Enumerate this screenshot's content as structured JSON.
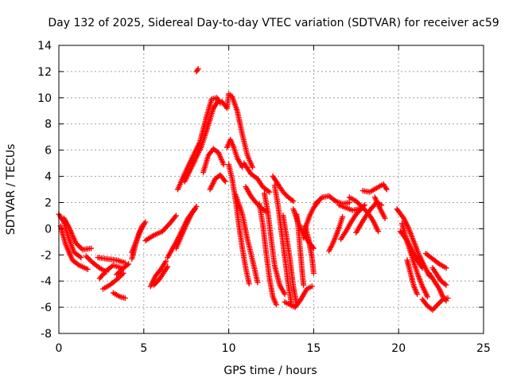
{
  "chart_data": {
    "type": "scatter",
    "title": "Day 132 of 2025, Sidereal Day-to-day VTEC variation (SDTVAR) for receiver ac59",
    "xlabel": "GPS time / hours",
    "ylabel": "SDTVAR / TECUs",
    "xlim": [
      0,
      25
    ],
    "ylim": [
      -8,
      14
    ],
    "xticks": [
      "0",
      "5",
      "10",
      "15",
      "20",
      "25"
    ],
    "yticks": [
      "-8",
      "-6",
      "-4",
      "-2",
      "0",
      "2",
      "4",
      "6",
      "8",
      "10",
      "12",
      "14"
    ],
    "grid": true,
    "marker": "plus",
    "series_color": "#ff0000",
    "tracks": [
      [
        [
          0.0,
          1.1
        ],
        [
          0.3,
          0.5
        ],
        [
          0.6,
          -0.8
        ],
        [
          0.9,
          -1.8
        ],
        [
          1.3,
          -2.2
        ]
      ],
      [
        [
          0.1,
          0.2
        ],
        [
          0.4,
          -1.2
        ],
        [
          0.8,
          -2.4
        ],
        [
          1.2,
          -2.8
        ],
        [
          1.7,
          -3.1
        ]
      ],
      [
        [
          0.3,
          0.8
        ],
        [
          0.6,
          0.1
        ],
        [
          1.0,
          -1.1
        ],
        [
          1.4,
          -1.6
        ],
        [
          1.9,
          -1.5
        ]
      ],
      [
        [
          1.6,
          -2.1
        ],
        [
          2.0,
          -2.6
        ],
        [
          2.4,
          -3.0
        ],
        [
          2.8,
          -3.3
        ]
      ],
      [
        [
          2.3,
          -2.2
        ],
        [
          2.8,
          -2.3
        ],
        [
          3.4,
          -2.4
        ],
        [
          3.9,
          -2.6
        ]
      ],
      [
        [
          2.4,
          -3.8
        ],
        [
          2.8,
          -3.2
        ],
        [
          3.2,
          -2.8
        ],
        [
          3.7,
          -3.0
        ]
      ],
      [
        [
          2.6,
          -4.6
        ],
        [
          3.0,
          -4.3
        ],
        [
          3.4,
          -3.9
        ],
        [
          3.8,
          -3.4
        ]
      ],
      [
        [
          3.2,
          -4.9
        ],
        [
          3.6,
          -5.2
        ],
        [
          3.9,
          -5.3
        ]
      ],
      [
        [
          3.4,
          -3.5
        ],
        [
          3.8,
          -3.0
        ],
        [
          4.1,
          -2.7
        ]
      ],
      [
        [
          4.3,
          -2.3
        ],
        [
          4.5,
          -1.3
        ],
        [
          4.7,
          -0.4
        ],
        [
          4.9,
          0.2
        ],
        [
          5.1,
          0.5
        ]
      ],
      [
        [
          4.3,
          -1.8
        ],
        [
          4.6,
          -0.8
        ],
        [
          4.8,
          -0.2
        ],
        [
          5.0,
          0.3
        ]
      ],
      [
        [
          5.1,
          -0.9
        ],
        [
          5.6,
          -0.5
        ],
        [
          6.1,
          -0.2
        ],
        [
          6.6,
          0.5
        ],
        [
          6.9,
          1.0
        ]
      ],
      [
        [
          5.4,
          -4.4
        ],
        [
          5.7,
          -3.6
        ],
        [
          6.0,
          -3.1
        ],
        [
          6.3,
          -2.5
        ]
      ],
      [
        [
          5.6,
          -4.3
        ],
        [
          5.9,
          -3.9
        ],
        [
          6.2,
          -3.3
        ],
        [
          6.4,
          -2.9
        ]
      ],
      [
        [
          6.4,
          -2.2
        ],
        [
          6.7,
          -1.5
        ],
        [
          7.0,
          -0.8
        ],
        [
          7.3,
          0.0
        ],
        [
          7.6,
          0.8
        ],
        [
          8.0,
          1.5
        ]
      ],
      [
        [
          6.9,
          -1.5
        ],
        [
          7.2,
          -0.6
        ],
        [
          7.5,
          0.3
        ],
        [
          7.8,
          1.1
        ],
        [
          8.1,
          1.7
        ]
      ],
      [
        [
          7.0,
          3.0
        ],
        [
          7.3,
          3.9
        ],
        [
          7.7,
          5.0
        ],
        [
          8.0,
          5.8
        ],
        [
          8.3,
          6.6
        ],
        [
          8.7,
          8.6
        ],
        [
          9.0,
          9.9
        ],
        [
          9.3,
          10.0
        ],
        [
          9.5,
          9.6
        ]
      ],
      [
        [
          7.4,
          3.6
        ],
        [
          7.7,
          4.4
        ],
        [
          8.0,
          5.2
        ],
        [
          8.4,
          6.3
        ],
        [
          8.7,
          7.5
        ],
        [
          9.1,
          9.2
        ],
        [
          9.4,
          9.8
        ]
      ],
      [
        [
          8.1,
          12.0
        ],
        [
          8.2,
          12.2
        ]
      ],
      [
        [
          8.5,
          4.3
        ],
        [
          8.8,
          5.6
        ],
        [
          9.1,
          6.1
        ],
        [
          9.4,
          5.8
        ],
        [
          9.7,
          4.9
        ]
      ],
      [
        [
          8.9,
          3.0
        ],
        [
          9.2,
          3.8
        ],
        [
          9.5,
          4.1
        ],
        [
          9.8,
          3.6
        ]
      ],
      [
        [
          9.6,
          9.7
        ],
        [
          9.9,
          9.2
        ],
        [
          10.0,
          10.3
        ],
        [
          10.2,
          10.1
        ],
        [
          10.5,
          9.0
        ],
        [
          10.8,
          7.2
        ],
        [
          11.1,
          5.6
        ],
        [
          11.4,
          4.7
        ]
      ],
      [
        [
          9.9,
          6.2
        ],
        [
          10.1,
          6.8
        ],
        [
          10.3,
          6.2
        ],
        [
          10.5,
          5.4
        ],
        [
          10.8,
          4.7
        ]
      ],
      [
        [
          10.0,
          4.9
        ],
        [
          10.2,
          3.8
        ],
        [
          10.4,
          2.2
        ],
        [
          10.6,
          0.3
        ],
        [
          10.8,
          -1.5
        ],
        [
          11.0,
          -3.0
        ],
        [
          11.2,
          -4.2
        ]
      ],
      [
        [
          10.4,
          2.6
        ],
        [
          10.8,
          1.1
        ],
        [
          11.1,
          -0.8
        ],
        [
          11.4,
          -2.4
        ],
        [
          11.7,
          -4.1
        ]
      ],
      [
        [
          10.9,
          5.0
        ],
        [
          11.3,
          4.2
        ],
        [
          11.7,
          3.8
        ],
        [
          12.0,
          3.2
        ],
        [
          12.4,
          2.8
        ]
      ],
      [
        [
          11.0,
          3.2
        ],
        [
          11.3,
          2.5
        ],
        [
          11.6,
          2.0
        ],
        [
          11.9,
          1.6
        ],
        [
          12.2,
          1.3
        ]
      ],
      [
        [
          11.8,
          1.9
        ],
        [
          12.0,
          0.4
        ],
        [
          12.2,
          -1.8
        ],
        [
          12.4,
          -3.8
        ],
        [
          12.6,
          -5.2
        ],
        [
          12.8,
          -5.8
        ]
      ],
      [
        [
          12.1,
          2.7
        ],
        [
          12.3,
          1.3
        ],
        [
          12.5,
          -0.8
        ],
        [
          12.7,
          -2.8
        ],
        [
          13.0,
          -4.3
        ],
        [
          13.3,
          -5.0
        ]
      ],
      [
        [
          12.6,
          4.0
        ],
        [
          12.9,
          3.4
        ],
        [
          13.2,
          2.8
        ],
        [
          13.5,
          2.4
        ],
        [
          13.8,
          2.1
        ]
      ],
      [
        [
          12.7,
          3.3
        ],
        [
          12.9,
          1.8
        ],
        [
          13.1,
          -0.2
        ],
        [
          13.3,
          -2.2
        ],
        [
          13.5,
          -4.2
        ],
        [
          13.7,
          -5.8
        ]
      ],
      [
        [
          13.2,
          1.0
        ],
        [
          13.4,
          -0.6
        ],
        [
          13.6,
          -2.3
        ],
        [
          13.8,
          -4.4
        ],
        [
          14.0,
          -5.8
        ]
      ],
      [
        [
          13.3,
          -5.6
        ],
        [
          13.6,
          -5.8
        ],
        [
          13.9,
          -6.0
        ],
        [
          14.2,
          -5.5
        ],
        [
          14.6,
          -4.6
        ],
        [
          14.9,
          -4.4
        ]
      ],
      [
        [
          13.8,
          1.5
        ],
        [
          14.1,
          0.4
        ],
        [
          14.4,
          -0.4
        ],
        [
          14.7,
          -1.0
        ],
        [
          15.0,
          -1.5
        ]
      ],
      [
        [
          14.0,
          1.1
        ],
        [
          14.1,
          0.0
        ],
        [
          14.2,
          -1.5
        ],
        [
          14.3,
          -3.0
        ],
        [
          14.4,
          -4.3
        ]
      ],
      [
        [
          14.5,
          0.2
        ],
        [
          14.7,
          -0.8
        ],
        [
          14.9,
          -2.2
        ],
        [
          15.0,
          -3.4
        ]
      ],
      [
        [
          14.4,
          -0.7
        ],
        [
          14.6,
          0.4
        ],
        [
          14.8,
          1.1
        ],
        [
          15.0,
          1.6
        ],
        [
          15.3,
          2.1
        ]
      ],
      [
        [
          15.1,
          1.9
        ],
        [
          15.5,
          2.4
        ],
        [
          15.9,
          2.5
        ],
        [
          16.3,
          2.1
        ],
        [
          16.7,
          1.9
        ],
        [
          17.1,
          2.0
        ]
      ],
      [
        [
          15.9,
          -1.7
        ],
        [
          16.1,
          -1.2
        ],
        [
          16.3,
          -0.6
        ],
        [
          16.5,
          0.1
        ],
        [
          16.7,
          0.9
        ]
      ],
      [
        [
          16.5,
          1.8
        ],
        [
          16.9,
          1.6
        ],
        [
          17.3,
          1.4
        ],
        [
          17.7,
          1.5
        ],
        [
          18.0,
          1.8
        ]
      ],
      [
        [
          16.6,
          -0.8
        ],
        [
          16.9,
          -0.2
        ],
        [
          17.2,
          0.5
        ],
        [
          17.5,
          1.1
        ],
        [
          17.8,
          1.5
        ]
      ],
      [
        [
          17.1,
          2.4
        ],
        [
          17.5,
          2.1
        ],
        [
          17.9,
          1.6
        ],
        [
          18.2,
          1.2
        ],
        [
          18.5,
          0.6
        ],
        [
          18.8,
          -0.2
        ]
      ],
      [
        [
          17.5,
          -0.3
        ],
        [
          17.9,
          0.6
        ],
        [
          18.3,
          1.4
        ],
        [
          18.7,
          2.0
        ],
        [
          19.0,
          1.8
        ]
      ],
      [
        [
          17.9,
          2.9
        ],
        [
          18.3,
          2.8
        ],
        [
          18.7,
          3.1
        ],
        [
          19.1,
          3.4
        ],
        [
          19.3,
          3.0
        ]
      ],
      [
        [
          18.6,
          2.4
        ],
        [
          18.8,
          1.8
        ],
        [
          19.0,
          1.3
        ],
        [
          19.2,
          0.8
        ]
      ],
      [
        [
          19.9,
          1.5
        ],
        [
          20.3,
          0.8
        ],
        [
          20.6,
          0.0
        ],
        [
          20.9,
          -1.0
        ],
        [
          21.2,
          -2.0
        ],
        [
          21.5,
          -2.8
        ],
        [
          21.8,
          -3.6
        ]
      ],
      [
        [
          20.2,
          0.4
        ],
        [
          20.5,
          -1.0
        ],
        [
          20.8,
          -2.2
        ],
        [
          21.1,
          -3.4
        ],
        [
          21.4,
          -4.4
        ],
        [
          21.7,
          -5.2
        ]
      ],
      [
        [
          20.1,
          -0.2
        ],
        [
          20.5,
          -0.9
        ],
        [
          20.8,
          -1.7
        ],
        [
          21.1,
          -2.4
        ],
        [
          21.4,
          -3.0
        ]
      ],
      [
        [
          20.5,
          -2.4
        ],
        [
          20.7,
          -3.4
        ],
        [
          20.9,
          -4.4
        ],
        [
          21.1,
          -5.0
        ]
      ],
      [
        [
          21.4,
          -5.4
        ],
        [
          21.7,
          -5.9
        ],
        [
          22.0,
          -6.2
        ],
        [
          22.3,
          -5.8
        ],
        [
          22.6,
          -5.4
        ],
        [
          22.9,
          -5.3
        ]
      ],
      [
        [
          21.6,
          -1.9
        ],
        [
          22.0,
          -2.3
        ],
        [
          22.4,
          -2.7
        ],
        [
          22.8,
          -3.0
        ]
      ],
      [
        [
          21.8,
          -3.4
        ],
        [
          22.1,
          -4.0
        ],
        [
          22.4,
          -4.6
        ],
        [
          22.6,
          -5.2
        ],
        [
          22.8,
          -5.5
        ]
      ],
      [
        [
          22.0,
          -3.0
        ],
        [
          22.3,
          -3.6
        ],
        [
          22.5,
          -4.0
        ],
        [
          22.8,
          -4.3
        ]
      ]
    ]
  }
}
